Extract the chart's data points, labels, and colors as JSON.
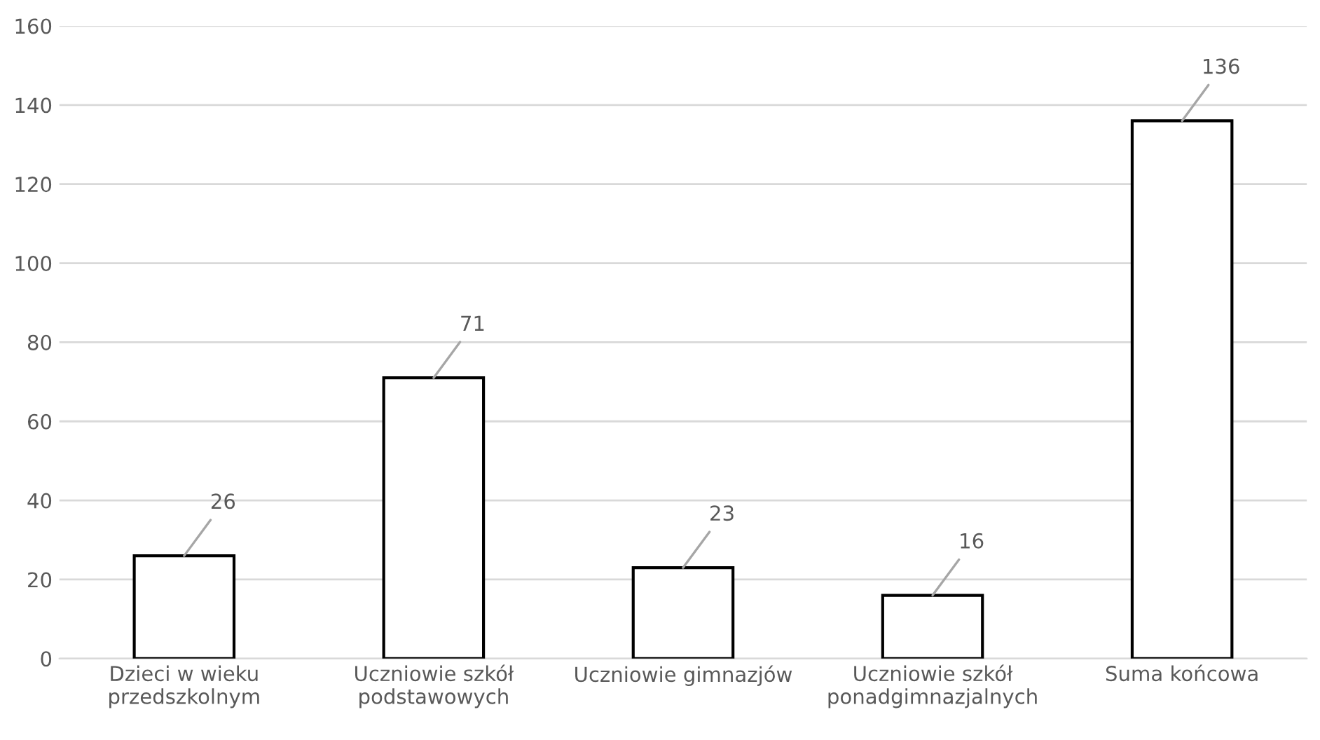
{
  "chart_data": {
    "type": "bar",
    "categories": [
      "Dzieci w wieku przedszkolnym",
      "Uczniowie szkół podstawowych",
      "Uczniowie gimnazjów",
      "Uczniowie szkół ponadgimnazjalnych",
      "Suma końcowa"
    ],
    "values": [
      26,
      71,
      23,
      16,
      136
    ],
    "color": "#ffffff",
    "ylim": [
      0,
      160
    ],
    "yticks": [
      0,
      20,
      40,
      60,
      80,
      100,
      120,
      140,
      160
    ],
    "grid": "y",
    "data_labels": true
  }
}
